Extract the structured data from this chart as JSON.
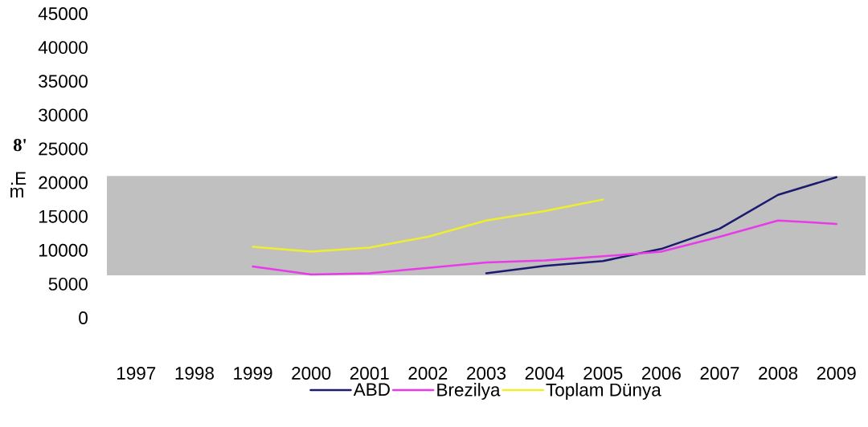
{
  "chart_data": {
    "type": "line",
    "categories": [
      "1997",
      "1998",
      "1999",
      "2000",
      "2001",
      "2002",
      "2003",
      "2004",
      "2005",
      "2006",
      "2007",
      "2008",
      "2009"
    ],
    "series": [
      {
        "name": "ABD",
        "color": "#1a1a6e",
        "values": [
          null,
          null,
          null,
          null,
          null,
          null,
          6600,
          7700,
          8400,
          10200,
          13200,
          18200,
          20800
        ]
      },
      {
        "name": "Brezilya",
        "color": "#e83ae8",
        "values": [
          null,
          null,
          7600,
          6400,
          6600,
          7400,
          8200,
          8500,
          9100,
          9800,
          12000,
          14400,
          13900
        ]
      },
      {
        "name": "Toplam Dünya",
        "color": "#eeee30",
        "values": [
          null,
          null,
          10500,
          9800,
          10400,
          12000,
          14400,
          15800,
          17500,
          null,
          null,
          null,
          null
        ]
      }
    ],
    "ylim": [
      0,
      45000
    ],
    "yticks": [
      0,
      5000,
      10000,
      15000,
      20000,
      25000,
      30000,
      35000,
      40000,
      45000
    ],
    "legend": "bottom",
    "bands": [
      {
        "axis": "y",
        "from": 6300,
        "to": 21000,
        "color": "#c0c0c0"
      }
    ],
    "annotations": [
      "8'",
      ".E",
      "m"
    ]
  }
}
